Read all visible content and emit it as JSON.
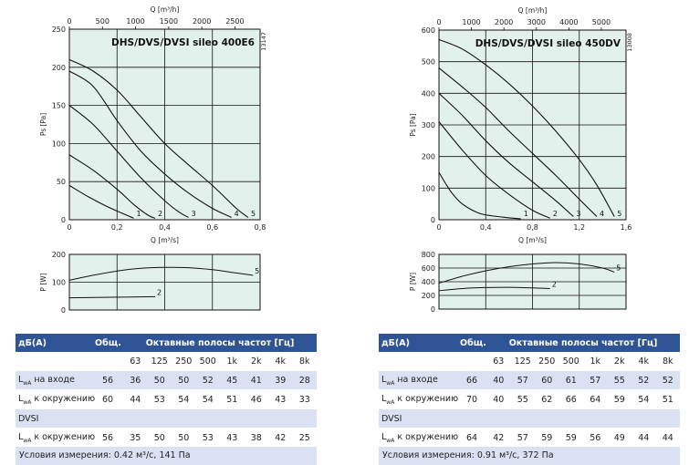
{
  "chart_data": [
    {
      "type": "line",
      "title": "DHS/DVS/DVSI sileo 400E6",
      "code": "13147",
      "top_axis_label": "Q [m³/h]",
      "top_ticks": [
        0,
        500,
        1000,
        1500,
        2000,
        2500
      ],
      "top_xlim": [
        0,
        2880
      ],
      "xlabel": "Q [m³/s]",
      "ylabel": "Ps [Pa]",
      "xlim": [
        0,
        0.8
      ],
      "ylim": [
        0,
        250
      ],
      "xticks": [
        "0",
        "0,2",
        "0,4",
        "0,6",
        "0,8"
      ],
      "yticks": [
        "0",
        "50",
        "100",
        "150",
        "200",
        "250"
      ],
      "series": [
        {
          "name": "1",
          "points": [
            [
              0,
              45
            ],
            [
              0.08,
              30
            ],
            [
              0.16,
              17
            ],
            [
              0.24,
              6
            ],
            [
              0.27,
              2
            ]
          ]
        },
        {
          "name": "2",
          "points": [
            [
              0,
              85
            ],
            [
              0.1,
              65
            ],
            [
              0.2,
              40
            ],
            [
              0.27,
              20
            ],
            [
              0.33,
              6
            ],
            [
              0.36,
              2
            ]
          ]
        },
        {
          "name": "3",
          "points": [
            [
              0,
              150
            ],
            [
              0.1,
              125
            ],
            [
              0.2,
              90
            ],
            [
              0.3,
              55
            ],
            [
              0.4,
              25
            ],
            [
              0.46,
              10
            ],
            [
              0.5,
              3
            ]
          ]
        },
        {
          "name": "4",
          "points": [
            [
              0,
              195
            ],
            [
              0.1,
              175
            ],
            [
              0.2,
              130
            ],
            [
              0.3,
              90
            ],
            [
              0.4,
              60
            ],
            [
              0.5,
              35
            ],
            [
              0.6,
              15
            ],
            [
              0.68,
              3
            ]
          ]
        },
        {
          "name": "5",
          "points": [
            [
              0,
              210
            ],
            [
              0.1,
              195
            ],
            [
              0.2,
              170
            ],
            [
              0.3,
              135
            ],
            [
              0.4,
              100
            ],
            [
              0.5,
              72
            ],
            [
              0.6,
              45
            ],
            [
              0.7,
              15
            ],
            [
              0.75,
              3
            ]
          ]
        }
      ],
      "power": {
        "ylabel": "P [W]",
        "ylim": [
          0,
          200
        ],
        "yticks": [
          "0",
          "100",
          "200"
        ],
        "series": [
          {
            "name": "5",
            "points": [
              [
                0,
                107
              ],
              [
                0.1,
                125
              ],
              [
                0.2,
                140
              ],
              [
                0.3,
                150
              ],
              [
                0.4,
                153
              ],
              [
                0.5,
                152
              ],
              [
                0.6,
                145
              ],
              [
                0.7,
                133
              ],
              [
                0.77,
                125
              ]
            ]
          },
          {
            "name": "2",
            "points": [
              [
                0,
                44
              ],
              [
                0.36,
                48
              ]
            ]
          }
        ]
      }
    },
    {
      "type": "line",
      "title": "DHS/DVS/DVSI sileo 450DV",
      "code": "13008",
      "top_axis_label": "Q [m³/h]",
      "top_ticks": [
        0,
        1000,
        2000,
        3000,
        4000,
        5000
      ],
      "top_xlim": [
        0,
        5760
      ],
      "xlabel": "Q [m³/s]",
      "ylabel": "Ps [Pa]",
      "xlim": [
        0,
        1.6
      ],
      "ylim": [
        0,
        600
      ],
      "xticks": [
        "0",
        "0,4",
        "0,8",
        "1,2",
        "1,6"
      ],
      "yticks": [
        "0",
        "100",
        "200",
        "300",
        "400",
        "500",
        "600"
      ],
      "series": [
        {
          "name": "1",
          "points": [
            [
              0,
              150
            ],
            [
              0.1,
              90
            ],
            [
              0.2,
              50
            ],
            [
              0.35,
              20
            ],
            [
              0.55,
              8
            ],
            [
              0.7,
              3
            ]
          ]
        },
        {
          "name": "2",
          "points": [
            [
              0,
              310
            ],
            [
              0.2,
              220
            ],
            [
              0.4,
              140
            ],
            [
              0.6,
              80
            ],
            [
              0.8,
              30
            ],
            [
              0.95,
              5
            ]
          ]
        },
        {
          "name": "3",
          "points": [
            [
              0,
              400
            ],
            [
              0.2,
              330
            ],
            [
              0.4,
              250
            ],
            [
              0.6,
              180
            ],
            [
              0.8,
              120
            ],
            [
              1.0,
              60
            ],
            [
              1.15,
              10
            ]
          ]
        },
        {
          "name": "4",
          "points": [
            [
              0,
              480
            ],
            [
              0.2,
              420
            ],
            [
              0.4,
              355
            ],
            [
              0.6,
              280
            ],
            [
              0.8,
              210
            ],
            [
              1.0,
              140
            ],
            [
              1.2,
              65
            ],
            [
              1.35,
              10
            ]
          ]
        },
        {
          "name": "5",
          "points": [
            [
              0,
              570
            ],
            [
              0.2,
              540
            ],
            [
              0.4,
              490
            ],
            [
              0.6,
              430
            ],
            [
              0.8,
              360
            ],
            [
              1.0,
              280
            ],
            [
              1.2,
              190
            ],
            [
              1.35,
              110
            ],
            [
              1.5,
              10
            ]
          ]
        }
      ],
      "power": {
        "ylabel": "P [W]",
        "ylim": [
          0,
          800
        ],
        "yticks": [
          "0",
          "200",
          "400",
          "600",
          "800"
        ],
        "series": [
          {
            "name": "5",
            "points": [
              [
                0,
                380
              ],
              [
                0.2,
                480
              ],
              [
                0.4,
                560
              ],
              [
                0.6,
                620
              ],
              [
                0.8,
                660
              ],
              [
                1.0,
                680
              ],
              [
                1.2,
                660
              ],
              [
                1.4,
                600
              ],
              [
                1.5,
                540
              ]
            ]
          },
          {
            "name": "2",
            "points": [
              [
                0,
                270
              ],
              [
                0.2,
                300
              ],
              [
                0.4,
                315
              ],
              [
                0.6,
                318
              ],
              [
                0.8,
                310
              ],
              [
                0.95,
                300
              ]
            ]
          }
        ]
      }
    }
  ],
  "tables": [
    {
      "header": {
        "label": "дБ(A)",
        "total": "Общ.",
        "bands_title": "Октавные полосы частот [Гц]"
      },
      "freqs": [
        "63",
        "125",
        "250",
        "500",
        "1k",
        "2k",
        "4k",
        "8k"
      ],
      "rows": [
        {
          "label": "L",
          "sub": "wA",
          "rest": " на входе",
          "total": "56",
          "values": [
            "36",
            "50",
            "50",
            "52",
            "45",
            "41",
            "39",
            "28"
          ]
        },
        {
          "label": "L",
          "sub": "wA",
          "rest": " к окружению",
          "total": "60",
          "values": [
            "44",
            "53",
            "54",
            "54",
            "51",
            "46",
            "43",
            "33"
          ]
        },
        {
          "label": "DVSI",
          "section": true
        },
        {
          "label": "L",
          "sub": "wA",
          "rest": " к окружению",
          "total": "56",
          "values": [
            "35",
            "50",
            "50",
            "53",
            "43",
            "38",
            "42",
            "25"
          ]
        }
      ],
      "conditions": "Условия измерения: 0.42 м³/с, 141 Па"
    },
    {
      "header": {
        "label": "дБ(A)",
        "total": "Общ.",
        "bands_title": "Октавные полосы частот [Гц]"
      },
      "freqs": [
        "63",
        "125",
        "250",
        "500",
        "1k",
        "2k",
        "4k",
        "8k"
      ],
      "rows": [
        {
          "label": "L",
          "sub": "wA",
          "rest": " на входе",
          "total": "66",
          "values": [
            "40",
            "57",
            "60",
            "61",
            "57",
            "55",
            "52",
            "52"
          ]
        },
        {
          "label": "L",
          "sub": "wA",
          "rest": " к окружению",
          "total": "70",
          "values": [
            "40",
            "55",
            "62",
            "66",
            "64",
            "59",
            "54",
            "51"
          ]
        },
        {
          "label": "DVSI",
          "section": true
        },
        {
          "label": "L",
          "sub": "wA",
          "rest": " к окружению",
          "total": "64",
          "values": [
            "42",
            "57",
            "59",
            "59",
            "56",
            "49",
            "44",
            "44"
          ]
        }
      ],
      "conditions": "Условия измерения: 0.91 м³/с, 372 Па"
    }
  ],
  "colors": {
    "plot_bg": "#e3f1ec",
    "grid": "#111111",
    "curve": "#111111",
    "table_head": "#2f5496",
    "table_shade": "#d9e1f2"
  }
}
